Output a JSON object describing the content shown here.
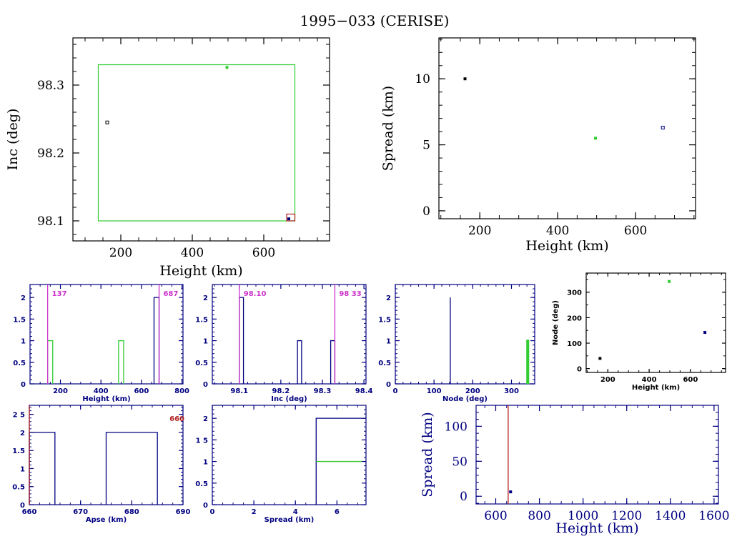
{
  "title": "1995−033 (CERISE)",
  "colors": {
    "black": "#000000",
    "navy": "#000080",
    "green": "#33cc33",
    "magenta": "#cc33cc",
    "red": "#b22222"
  },
  "chart_data": [
    {
      "id": "inc-vs-height",
      "type": "scatter",
      "xlabel": "Height (km)",
      "ylabel": "Inc (deg)",
      "xlim": [
        66,
        784
      ],
      "ylim": [
        98.0705,
        98.3695
      ],
      "xticks": [
        200,
        400,
        600
      ],
      "xticklabels": [
        "200",
        "400",
        "600"
      ],
      "xminor": 50,
      "yticks": [
        98.1,
        98.2,
        98.3
      ],
      "yticklabels": [
        "98.1",
        "98.2",
        "98.3"
      ],
      "yminor": 0.02,
      "points": [
        {
          "x": 162,
          "y": 98.245,
          "color": "black",
          "style": "open"
        },
        {
          "x": 497,
          "y": 98.326,
          "color": "green",
          "style": "filled"
        },
        {
          "x": 670,
          "y": 98.103,
          "color": "navy",
          "style": "filled"
        }
      ],
      "boxes": [
        {
          "x0": 137,
          "x1": 687,
          "y0": 98.1,
          "y1": 98.33,
          "color": "green"
        },
        {
          "x0": 664,
          "x1": 687,
          "y0": 98.1,
          "y1": 98.11,
          "color": "red"
        }
      ]
    },
    {
      "id": "spread-vs-height",
      "type": "scatter",
      "xlabel": "Height (km)",
      "ylabel": "Spread (km)",
      "xlim": [
        95,
        754
      ],
      "ylim": [
        -0.6,
        13.1
      ],
      "xticks": [
        200,
        400,
        600
      ],
      "xticklabels": [
        "200",
        "400",
        "600"
      ],
      "xminor": 50,
      "yticks": [
        0,
        5,
        10
      ],
      "yticklabels": [
        "0",
        "5",
        "10"
      ],
      "yminor": 1,
      "points": [
        {
          "x": 162,
          "y": 10.0,
          "color": "black",
          "style": "filled"
        },
        {
          "x": 497,
          "y": 5.5,
          "color": "green",
          "style": "filled"
        },
        {
          "x": 670,
          "y": 6.3,
          "color": "navy",
          "style": "open"
        }
      ]
    },
    {
      "id": "height-histogram",
      "type": "bar",
      "xlabel": "Height (km)",
      "ylabel": "",
      "xlim": [
        50,
        805
      ],
      "ylim": [
        0,
        2.3
      ],
      "xticks": [
        200,
        400,
        600,
        800
      ],
      "xticklabels": [
        "200",
        "400",
        "600",
        "800"
      ],
      "xminor": 50,
      "yticks": [
        0,
        0.5,
        1,
        1.5,
        2
      ],
      "yticklabels": [
        "0",
        "0.5",
        "1",
        "1.5",
        "2"
      ],
      "yminor": 0.1,
      "bars": [
        {
          "x0": 137,
          "x1": 162,
          "value": 1,
          "color": "green"
        },
        {
          "x0": 487,
          "x1": 512,
          "value": 1,
          "color": "green"
        },
        {
          "x0": 662,
          "x1": 687,
          "value": 2,
          "color": "navy"
        }
      ],
      "vlines": [
        {
          "x": 137,
          "label": "137",
          "color": "magenta",
          "label_side": "right"
        },
        {
          "x": 687,
          "label": "687",
          "color": "magenta",
          "label_side": "right"
        }
      ]
    },
    {
      "id": "inc-histogram",
      "type": "bar",
      "xlabel": "Inc (deg)",
      "ylabel": "",
      "xlim": [
        98.035,
        98.405
      ],
      "ylim": [
        0,
        2.3
      ],
      "xticks": [
        98.1,
        98.2,
        98.3,
        98.4
      ],
      "xticklabels": [
        "98.1",
        "98.2",
        "98.3",
        "98.4"
      ],
      "xminor": 0.02,
      "yticks": [
        0,
        0.5,
        1,
        1.5,
        2
      ],
      "yticklabels": [
        "0",
        "0.5",
        "1",
        "1.5",
        "2"
      ],
      "yminor": 0.1,
      "bars": [
        {
          "x0": 98.1,
          "x1": 98.11,
          "value": 2,
          "color": "navy"
        },
        {
          "x0": 98.24,
          "x1": 98.25,
          "value": 1,
          "color": "navy"
        },
        {
          "x0": 98.32,
          "x1": 98.33,
          "value": 1,
          "color": "navy"
        }
      ],
      "vlines": [
        {
          "x": 98.1,
          "label": "98.10",
          "color": "magenta",
          "label_side": "right"
        },
        {
          "x": 98.33,
          "label": "98 33",
          "color": "magenta",
          "label_side": "right"
        }
      ]
    },
    {
      "id": "node-histogram",
      "type": "bar",
      "xlabel": "Node (deg)",
      "ylabel": "",
      "xlim": [
        0,
        360
      ],
      "ylim": [
        0,
        2.3
      ],
      "xticks": [
        0,
        100,
        200,
        300
      ],
      "xticklabels": [
        "0",
        "100",
        "200",
        "300"
      ],
      "xminor": 20,
      "yticks": [
        0,
        0.5,
        1,
        1.5,
        2
      ],
      "yticklabels": [
        "0",
        "0.5",
        "1",
        "1.5",
        "2"
      ],
      "yminor": 0.1,
      "bars": [
        {
          "x0": 142,
          "x1": 142,
          "value": 2,
          "color": "navy"
        },
        {
          "x0": 341,
          "x1": 343,
          "value": 1,
          "color": "green"
        }
      ],
      "vlines": []
    },
    {
      "id": "node-vs-height",
      "type": "scatter",
      "xlabel": "Height (km)",
      "ylabel": "Node (deg)",
      "xlim": [
        95,
        770
      ],
      "ylim": [
        -15,
        375
      ],
      "xticks": [
        200,
        400,
        600
      ],
      "xticklabels": [
        "200",
        "400",
        "600"
      ],
      "xminor": 50,
      "yticks": [
        0,
        100,
        200,
        300
      ],
      "yticklabels": [
        "0",
        "100",
        "200",
        "300"
      ],
      "yminor": 50,
      "points": [
        {
          "x": 162,
          "y": 40,
          "color": "black",
          "style": "filled"
        },
        {
          "x": 497,
          "y": 342,
          "color": "green",
          "style": "filled"
        },
        {
          "x": 670,
          "y": 142,
          "color": "navy",
          "style": "filled"
        }
      ]
    },
    {
      "id": "apse-histogram",
      "type": "bar",
      "xlabel": "Apse (km)",
      "ylabel": "",
      "xlim": [
        660,
        690
      ],
      "ylim": [
        0,
        2.75
      ],
      "xticks": [
        660,
        670,
        680,
        690
      ],
      "xticklabels": [
        "660",
        "670",
        "680",
        "690"
      ],
      "xminor": 2,
      "yticks": [
        0,
        0.5,
        1,
        1.5,
        2,
        2.5
      ],
      "yticklabels": [
        "0",
        "0.5",
        "1",
        "1.5",
        "2",
        "2 5"
      ],
      "yminor": 0.1,
      "bars": [
        {
          "x0": 660,
          "x1": 665,
          "value": 2,
          "color": "navy"
        },
        {
          "x0": 675,
          "x1": 685,
          "value": 2,
          "color": "navy"
        }
      ],
      "vlines": [
        {
          "x": 660,
          "label": "660",
          "color": "red",
          "label_side": "far-right"
        }
      ]
    },
    {
      "id": "spread-histogram",
      "type": "bar",
      "xlabel": "Spread (km)",
      "ylabel": "",
      "xlim": [
        0,
        7.4
      ],
      "ylim": [
        0,
        2.3
      ],
      "xticks": [
        0,
        2,
        4,
        6
      ],
      "xticklabels": [
        "0",
        "2",
        "4",
        "6"
      ],
      "xminor": 0.5,
      "yticks": [
        0,
        0.5,
        1,
        1.5,
        2
      ],
      "yticklabels": [
        "0",
        "0.5",
        "1",
        "1 5",
        "2"
      ],
      "yminor": 0.1,
      "bars": [
        {
          "x0": 5,
          "x1": 7.4,
          "value": 2,
          "color": "navy",
          "open_right": true
        },
        {
          "x0": 5,
          "x1": 7.2,
          "value": 1,
          "color": "green",
          "top_only": true
        }
      ],
      "vlines": []
    },
    {
      "id": "spread-vs-height-wide",
      "type": "scatter",
      "xlabel": "Height (km)",
      "ylabel": "Spread (km)",
      "xlim": [
        510,
        1620
      ],
      "ylim": [
        -11,
        130
      ],
      "xticks": [
        600,
        800,
        1000,
        1200,
        1400,
        1600
      ],
      "xticklabels": [
        "600",
        "800",
        "1000",
        "1200",
        "1400",
        "1600"
      ],
      "xminor": 50,
      "yticks": [
        0,
        50,
        100
      ],
      "yticklabels": [
        "0",
        "50",
        "100"
      ],
      "yminor": 10,
      "points": [
        {
          "x": 668,
          "y": 6.3,
          "color": "navy",
          "style": "filled"
        }
      ],
      "vlines": [
        {
          "x": 657,
          "label": "",
          "color": "red"
        }
      ]
    }
  ]
}
